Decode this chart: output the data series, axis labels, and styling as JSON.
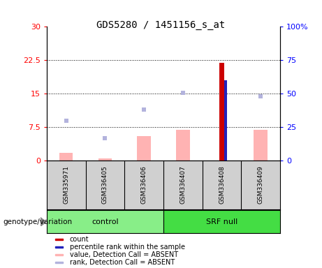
{
  "title": "GDS5280 / 1451156_s_at",
  "samples": [
    "GSM335971",
    "GSM336405",
    "GSM336406",
    "GSM336407",
    "GSM336408",
    "GSM336409"
  ],
  "bar_values_absent": [
    1.8,
    0.5,
    5.5,
    7.0,
    0.0,
    7.0
  ],
  "rank_dots_absent": [
    9.0,
    5.0,
    11.5,
    15.2,
    0.0,
    14.5
  ],
  "count_val": 22.0,
  "count_idx": 4,
  "percentile_val": 60.0,
  "percentile_idx": 4,
  "ylim_left": [
    0,
    30
  ],
  "ylim_right": [
    0,
    100
  ],
  "yticks_left": [
    0,
    7.5,
    15,
    22.5,
    30
  ],
  "ytick_labels_left": [
    "0",
    "7.5",
    "15",
    "22.5",
    "30"
  ],
  "yticks_right": [
    0,
    25,
    50,
    75,
    100
  ],
  "ytick_labels_right": [
    "0",
    "25",
    "50",
    "75",
    "100%"
  ],
  "color_count": "#cc0000",
  "color_percentile": "#2222bb",
  "color_value_absent": "#ffb3b3",
  "color_rank_absent": "#b3b3dd",
  "color_sample_bg": "#d0d0d0",
  "color_control": "#88ee88",
  "color_srf": "#44dd44",
  "bar_width": 0.35,
  "count_bar_width": 0.13,
  "pct_bar_width": 0.07,
  "n_control": 3,
  "n_srf": 3,
  "legend_items": [
    [
      "#cc0000",
      "count"
    ],
    [
      "#2222bb",
      "percentile rank within the sample"
    ],
    [
      "#ffb3b3",
      "value, Detection Call = ABSENT"
    ],
    [
      "#b3b3dd",
      "rank, Detection Call = ABSENT"
    ]
  ]
}
